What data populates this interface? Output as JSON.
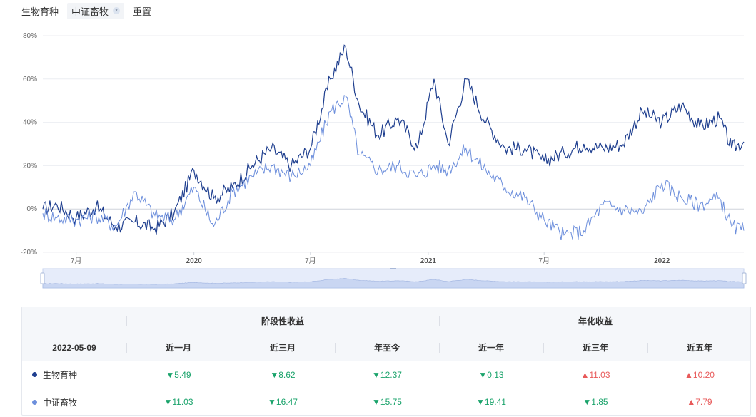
{
  "filters": {
    "tag1": "生物育种",
    "tag2": "中证畜牧",
    "close_icon": "×",
    "reset": "重置"
  },
  "chart_data": {
    "type": "line",
    "title": "",
    "xlabel": "",
    "ylabel": "",
    "ylim": [
      -20,
      80
    ],
    "y_ticks": [
      "80%",
      "60%",
      "40%",
      "20%",
      "0%",
      "-20%"
    ],
    "x_ticks": [
      {
        "date": "2019-07-01",
        "label": "7月",
        "year": false
      },
      {
        "date": "2020-01-01",
        "label": "2020",
        "year": true
      },
      {
        "date": "2020-07-01",
        "label": "7月",
        "year": false
      },
      {
        "date": "2021-01-01",
        "label": "2021",
        "year": true
      },
      {
        "date": "2021-07-01",
        "label": "7月",
        "year": false
      },
      {
        "date": "2022-01-01",
        "label": "2022",
        "year": true
      }
    ],
    "x_range": [
      "2019-05-10",
      "2022-05-09"
    ],
    "grid": true,
    "series": [
      {
        "name": "生物育种",
        "color": "#1f3f8f",
        "x": [
          "2019-05-10",
          "2019-06-01",
          "2019-07-01",
          "2019-08-01",
          "2019-09-01",
          "2019-10-01",
          "2019-11-01",
          "2019-12-01",
          "2020-01-01",
          "2020-02-01",
          "2020-03-01",
          "2020-04-01",
          "2020-05-01",
          "2020-06-01",
          "2020-07-01",
          "2020-08-01",
          "2020-08-25",
          "2020-09-15",
          "2020-10-15",
          "2020-11-15",
          "2020-12-15",
          "2021-01-10",
          "2021-02-01",
          "2021-03-01",
          "2021-04-01",
          "2021-05-01",
          "2021-06-01",
          "2021-07-01",
          "2021-08-01",
          "2021-09-01",
          "2021-10-01",
          "2021-11-01",
          "2021-12-01",
          "2022-01-01",
          "2022-02-01",
          "2022-03-01",
          "2022-04-01",
          "2022-04-20",
          "2022-05-09"
        ],
        "values": [
          0,
          2,
          -4,
          1,
          -8,
          -6,
          -9,
          -2,
          18,
          5,
          10,
          20,
          28,
          20,
          28,
          60,
          75,
          48,
          34,
          42,
          28,
          60,
          30,
          60,
          40,
          28,
          28,
          22,
          26,
          30,
          28,
          30,
          45,
          40,
          48,
          38,
          42,
          28,
          31
        ]
      },
      {
        "name": "中证畜牧",
        "color": "#6d8fdc",
        "x": [
          "2019-05-10",
          "2019-06-01",
          "2019-07-01",
          "2019-08-01",
          "2019-09-01",
          "2019-10-01",
          "2019-11-01",
          "2019-12-01",
          "2020-01-01",
          "2020-02-01",
          "2020-03-01",
          "2020-04-01",
          "2020-05-01",
          "2020-06-01",
          "2020-07-01",
          "2020-08-01",
          "2020-08-25",
          "2020-09-15",
          "2020-10-15",
          "2020-11-15",
          "2020-12-15",
          "2021-01-10",
          "2021-02-01",
          "2021-03-01",
          "2021-04-01",
          "2021-05-01",
          "2021-06-01",
          "2021-07-01",
          "2021-08-01",
          "2021-09-01",
          "2021-10-01",
          "2021-11-01",
          "2021-12-01",
          "2022-01-01",
          "2022-02-01",
          "2022-03-01",
          "2022-04-01",
          "2022-04-20",
          "2022-05-09"
        ],
        "values": [
          -2,
          -4,
          -5,
          -3,
          -8,
          8,
          -3,
          -5,
          10,
          -8,
          8,
          15,
          20,
          15,
          20,
          45,
          52,
          25,
          18,
          20,
          15,
          20,
          18,
          28,
          18,
          10,
          5,
          -5,
          -12,
          -10,
          2,
          0,
          -2,
          12,
          5,
          2,
          5,
          -8,
          -10
        ]
      }
    ]
  },
  "table": {
    "group1": "阶段性收益",
    "group2": "年化收益",
    "date": "2022-05-09",
    "columns": [
      "近一月",
      "近三月",
      "年至今",
      "近一年",
      "近三年",
      "近五年"
    ],
    "rows": [
      {
        "name": "生物育种",
        "dot_color": "#1f3f8f",
        "cells": [
          {
            "text": "▼5.49",
            "dir": "down"
          },
          {
            "text": "▼8.62",
            "dir": "down"
          },
          {
            "text": "▼12.37",
            "dir": "down"
          },
          {
            "text": "▼0.13",
            "dir": "down"
          },
          {
            "text": "▲11.03",
            "dir": "up"
          },
          {
            "text": "▲10.20",
            "dir": "up"
          }
        ]
      },
      {
        "name": "中证畜牧",
        "dot_color": "#6d8fdc",
        "cells": [
          {
            "text": "▼11.03",
            "dir": "down"
          },
          {
            "text": "▼16.47",
            "dir": "down"
          },
          {
            "text": "▼15.75",
            "dir": "down"
          },
          {
            "text": "▼19.41",
            "dir": "down"
          },
          {
            "text": "▼1.85",
            "dir": "down"
          },
          {
            "text": "▲7.79",
            "dir": "up"
          }
        ]
      }
    ]
  }
}
